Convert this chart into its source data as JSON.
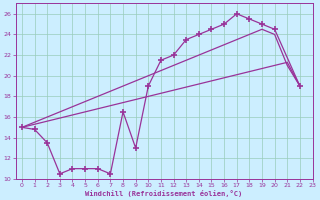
{
  "xlabel": "Windchill (Refroidissement éolien,°C)",
  "bg_color": "#cceeff",
  "grid_color": "#99ccbb",
  "line_color": "#993399",
  "xlim": [
    -0.5,
    23
  ],
  "ylim": [
    10,
    27
  ],
  "xticks": [
    0,
    1,
    2,
    3,
    4,
    5,
    6,
    7,
    8,
    9,
    10,
    11,
    12,
    13,
    14,
    15,
    16,
    17,
    18,
    19,
    20,
    21,
    22,
    23
  ],
  "yticks": [
    10,
    12,
    14,
    16,
    18,
    20,
    22,
    24,
    26
  ],
  "series1": [
    [
      0,
      15.0
    ],
    [
      1,
      14.8
    ],
    [
      2,
      13.5
    ],
    [
      3,
      10.5
    ],
    [
      4,
      11.0
    ],
    [
      5,
      11.0
    ],
    [
      6,
      11.0
    ],
    [
      7,
      10.5
    ],
    [
      8,
      16.5
    ],
    [
      9,
      13.0
    ],
    [
      10,
      19.0
    ],
    [
      11,
      21.5
    ],
    [
      12,
      22.0
    ],
    [
      13,
      23.5
    ],
    [
      14,
      24.0
    ],
    [
      15,
      24.5
    ],
    [
      16,
      25.0
    ],
    [
      17,
      26.0
    ],
    [
      18,
      25.5
    ],
    [
      19,
      25.0
    ],
    [
      20,
      24.5
    ],
    [
      22,
      19.0
    ]
  ],
  "series2": [
    [
      0,
      15.0
    ],
    [
      1,
      15.3
    ],
    [
      2,
      15.6
    ],
    [
      3,
      15.9
    ],
    [
      4,
      16.2
    ],
    [
      5,
      16.5
    ],
    [
      6,
      16.8
    ],
    [
      7,
      17.1
    ],
    [
      8,
      17.4
    ],
    [
      9,
      17.7
    ],
    [
      10,
      18.0
    ],
    [
      11,
      18.3
    ],
    [
      12,
      18.6
    ],
    [
      13,
      18.9
    ],
    [
      14,
      19.2
    ],
    [
      15,
      19.5
    ],
    [
      16,
      19.8
    ],
    [
      17,
      20.1
    ],
    [
      18,
      20.4
    ],
    [
      19,
      20.7
    ],
    [
      20,
      21.0
    ],
    [
      21,
      21.3
    ],
    [
      22,
      19.0
    ]
  ],
  "series3": [
    [
      0,
      15.0
    ],
    [
      1,
      15.5
    ],
    [
      2,
      16.0
    ],
    [
      3,
      16.5
    ],
    [
      4,
      17.0
    ],
    [
      5,
      17.5
    ],
    [
      6,
      18.0
    ],
    [
      7,
      18.5
    ],
    [
      8,
      19.0
    ],
    [
      9,
      19.5
    ],
    [
      10,
      20.0
    ],
    [
      11,
      20.5
    ],
    [
      12,
      21.0
    ],
    [
      13,
      21.5
    ],
    [
      14,
      22.0
    ],
    [
      15,
      22.5
    ],
    [
      16,
      23.0
    ],
    [
      17,
      23.5
    ],
    [
      18,
      24.0
    ],
    [
      19,
      24.5
    ],
    [
      20,
      24.0
    ],
    [
      21,
      21.0
    ],
    [
      22,
      19.0
    ]
  ]
}
